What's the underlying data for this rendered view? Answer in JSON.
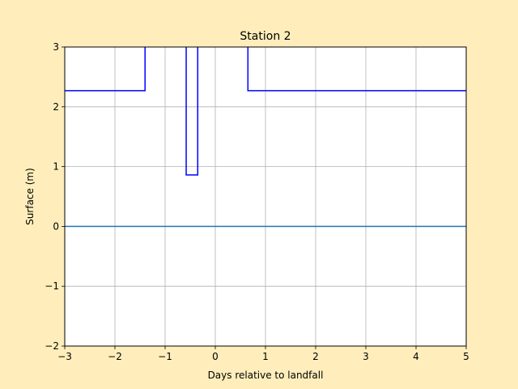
{
  "chart_data": {
    "type": "line",
    "title": "Station 2",
    "xlabel": "Days relative to landfall",
    "ylabel": "Surface (m)",
    "xlim": [
      -3,
      5
    ],
    "ylim": [
      -2,
      3
    ],
    "xticks": [
      -3,
      -2,
      -1,
      0,
      1,
      2,
      3,
      4,
      5
    ],
    "yticks": [
      -2,
      -1,
      0,
      1,
      2,
      3
    ],
    "xtick_labels": [
      "−3",
      "−2",
      "−1",
      "0",
      "1",
      "2",
      "3",
      "4",
      "5"
    ],
    "ytick_labels": [
      "−2",
      "−1",
      "0",
      "1",
      "2",
      "3"
    ],
    "grid": true,
    "series": [
      {
        "color": "#0000ff",
        "step": true,
        "x": [
          -3.0,
          -1.4,
          -1.4,
          -0.58,
          -0.58,
          -0.35,
          -0.35,
          0.65,
          0.65,
          5.0
        ],
        "y": [
          2.27,
          2.27,
          3.2,
          3.2,
          0.86,
          0.86,
          3.2,
          3.2,
          2.27,
          2.27
        ]
      },
      {
        "color": "#1f77b4",
        "x": [
          -3,
          5
        ],
        "y": [
          0,
          0
        ]
      }
    ],
    "colors": {
      "background": "#ffeebb",
      "plot_area": "#ffffff",
      "grid": "#b0b0b0"
    }
  }
}
